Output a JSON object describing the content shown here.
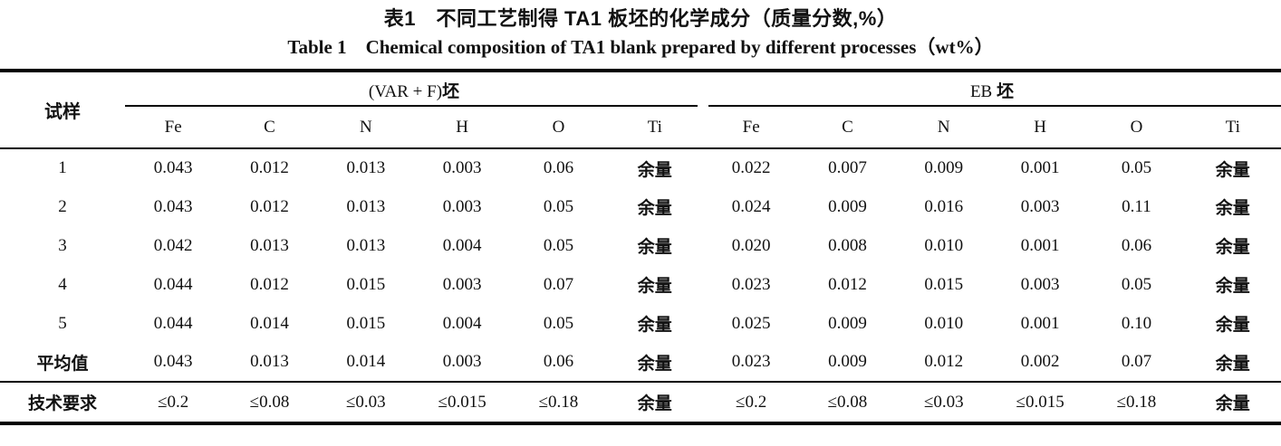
{
  "title": {
    "zh": "表1　不同工艺制得 TA1 板坯的化学成分（质量分数,%）",
    "en": "Table 1　Chemical composition of TA1 blank prepared by different processes（wt%）"
  },
  "table": {
    "sample_header": "试样",
    "groups": [
      {
        "label_prefix": "(VAR + F)",
        "label_cjk": "坯",
        "elements": [
          "Fe",
          "C",
          "N",
          "H",
          "O",
          "Ti"
        ]
      },
      {
        "label_prefix": "EB ",
        "label_cjk": "坯",
        "elements": [
          "Fe",
          "C",
          "N",
          "H",
          "O",
          "Ti"
        ]
      }
    ],
    "rows": [
      {
        "sample": "1",
        "bold_label": false,
        "var_f": [
          "0.043",
          "0.012",
          "0.013",
          "0.003",
          "0.06",
          "余量"
        ],
        "eb": [
          "0.022",
          "0.007",
          "0.009",
          "0.001",
          "0.05",
          "余量"
        ]
      },
      {
        "sample": "2",
        "bold_label": false,
        "var_f": [
          "0.043",
          "0.012",
          "0.013",
          "0.003",
          "0.05",
          "余量"
        ],
        "eb": [
          "0.024",
          "0.009",
          "0.016",
          "0.003",
          "0.11",
          "余量"
        ]
      },
      {
        "sample": "3",
        "bold_label": false,
        "var_f": [
          "0.042",
          "0.013",
          "0.013",
          "0.004",
          "0.05",
          "余量"
        ],
        "eb": [
          "0.020",
          "0.008",
          "0.010",
          "0.001",
          "0.06",
          "余量"
        ]
      },
      {
        "sample": "4",
        "bold_label": false,
        "var_f": [
          "0.044",
          "0.012",
          "0.015",
          "0.003",
          "0.07",
          "余量"
        ],
        "eb": [
          "0.023",
          "0.012",
          "0.015",
          "0.003",
          "0.05",
          "余量"
        ]
      },
      {
        "sample": "5",
        "bold_label": false,
        "var_f": [
          "0.044",
          "0.014",
          "0.015",
          "0.004",
          "0.05",
          "余量"
        ],
        "eb": [
          "0.025",
          "0.009",
          "0.010",
          "0.001",
          "0.10",
          "余量"
        ]
      },
      {
        "sample": "平均值",
        "bold_label": true,
        "var_f": [
          "0.043",
          "0.013",
          "0.014",
          "0.003",
          "0.06",
          "余量"
        ],
        "eb": [
          "0.023",
          "0.009",
          "0.012",
          "0.002",
          "0.07",
          "余量"
        ]
      },
      {
        "sample": "技术要求",
        "bold_label": true,
        "var_f": [
          "≤0.2",
          "≤0.08",
          "≤0.03",
          "≤0.015",
          "≤0.18",
          "余量"
        ],
        "eb": [
          "≤0.2",
          "≤0.08",
          "≤0.03",
          "≤0.015",
          "≤0.18",
          "余量"
        ]
      }
    ],
    "balance_text": "余量",
    "colors": {
      "text": "#111111",
      "rule": "#000000",
      "background": "#ffffff"
    }
  }
}
